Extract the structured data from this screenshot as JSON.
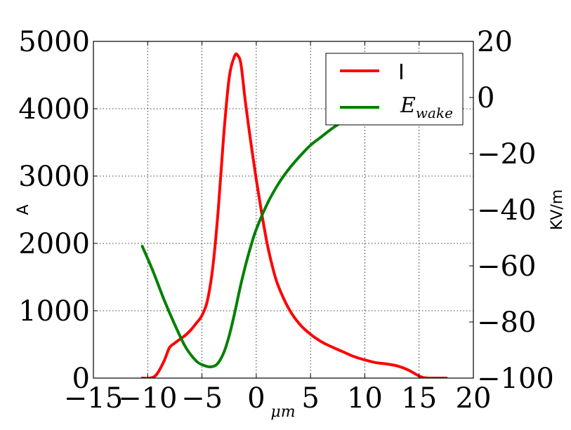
{
  "chart_data": {
    "type": "line",
    "title": "",
    "xlabel": "μm",
    "ylabel_left": "A",
    "ylabel_right": "KV/m",
    "xlim": [
      -15,
      20
    ],
    "ylim_left": [
      0,
      5000
    ],
    "ylim_right": [
      -100,
      20
    ],
    "x_ticks": [
      -15,
      -10,
      -5,
      0,
      5,
      10,
      15,
      20
    ],
    "x_tick_labels": [
      "−15",
      "−10",
      "−5",
      "0",
      "5",
      "10",
      "15",
      "20"
    ],
    "y_left_ticks": [
      0,
      1000,
      2000,
      3000,
      4000,
      5000
    ],
    "y_left_tick_labels": [
      "0",
      "1000",
      "2000",
      "3000",
      "4000",
      "5000"
    ],
    "y_right_ticks": [
      -100,
      -80,
      -60,
      -40,
      -20,
      0,
      20
    ],
    "y_right_tick_labels": [
      "−100",
      "−80",
      "−60",
      "−40",
      "−20",
      "0",
      "20"
    ],
    "grid": true,
    "legend_position": "top-right",
    "series": [
      {
        "name": "I",
        "axis": "left",
        "color": "#ff0000",
        "x": [
          -10.5,
          -9.8,
          -9.2,
          -8.5,
          -8.0,
          -7.5,
          -7.0,
          -6.5,
          -6.0,
          -5.5,
          -5.0,
          -4.5,
          -4.0,
          -3.5,
          -3.0,
          -2.5,
          -2.0,
          -1.7,
          -1.4,
          -1.0,
          -0.5,
          0.0,
          0.5,
          1.0,
          1.5,
          2.0,
          3.0,
          4.0,
          5.0,
          6.0,
          7.0,
          8.0,
          9.0,
          10.0,
          11.0,
          12.0,
          13.0,
          14.0,
          15.0,
          15.5,
          16.0,
          17.5
        ],
        "y": [
          0,
          0,
          50,
          250,
          450,
          520,
          580,
          640,
          720,
          820,
          930,
          1150,
          1650,
          2500,
          3600,
          4450,
          4780,
          4790,
          4650,
          4100,
          3500,
          2950,
          2450,
          2000,
          1650,
          1380,
          1030,
          800,
          650,
          540,
          460,
          390,
          320,
          270,
          230,
          210,
          180,
          120,
          30,
          5,
          0,
          0
        ]
      },
      {
        "name": "E_wake",
        "axis": "right",
        "color": "#008000",
        "x": [
          -10.5,
          -9.5,
          -8.5,
          -7.5,
          -6.5,
          -5.5,
          -4.8,
          -4.2,
          -3.6,
          -3.0,
          -2.5,
          -2.0,
          -1.5,
          -1.0,
          -0.5,
          0.0,
          1.0,
          2.0,
          3.0,
          4.0,
          5.0,
          6.0,
          7.0,
          8.0
        ],
        "y": [
          -53,
          -62,
          -72,
          -81,
          -89,
          -94,
          -95.5,
          -96,
          -95,
          -91,
          -85,
          -77,
          -68,
          -60,
          -53,
          -47,
          -38,
          -31,
          -25.5,
          -21,
          -17,
          -14,
          -11,
          -8.5
        ]
      }
    ],
    "legend": [
      {
        "series": "I",
        "label": "I",
        "color": "#ff0000"
      },
      {
        "series": "E_wake",
        "label_base": "E",
        "label_sub": "wake",
        "color": "#008000"
      }
    ]
  }
}
